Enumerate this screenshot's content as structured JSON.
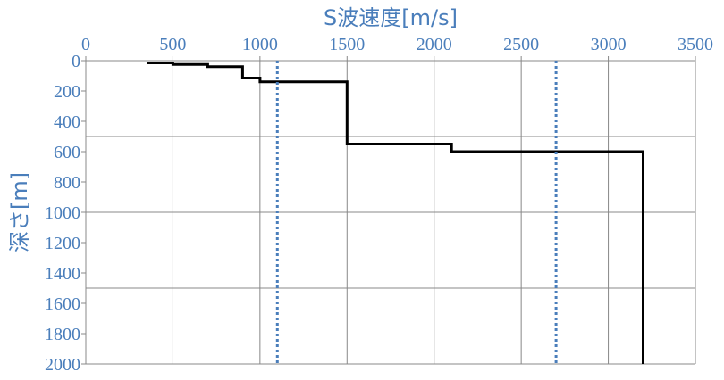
{
  "chart_data": {
    "type": "line",
    "title": "",
    "xlabel": "S波速度[m/s]",
    "ylabel": "深さ[m]",
    "x_axis_position": "top",
    "y_axis_inverted": true,
    "xlim": [
      0,
      3500
    ],
    "ylim": [
      0,
      2000
    ],
    "x_ticks": [
      "0",
      "500",
      "1000",
      "1500",
      "2000",
      "2500",
      "3000",
      "3500"
    ],
    "y_ticks": [
      "0",
      "200",
      "400",
      "600",
      "800",
      "1000",
      "1200",
      "1400",
      "1600",
      "1800",
      "2000"
    ],
    "grid": {
      "vertical_every": 500,
      "horizontal_every": 500
    },
    "label_color": "#4a7ebb",
    "series": [
      {
        "style": "solid",
        "color": "#000000",
        "points": [
          [
            350,
            15
          ],
          [
            500,
            15
          ],
          [
            500,
            25
          ],
          [
            700,
            25
          ],
          [
            700,
            40
          ],
          [
            900,
            40
          ],
          [
            900,
            115
          ],
          [
            1000,
            115
          ],
          [
            1000,
            140
          ],
          [
            1500,
            140
          ],
          [
            1500,
            550
          ],
          [
            2100,
            550
          ],
          [
            2100,
            600
          ],
          [
            3200,
            600
          ],
          [
            3200,
            2000
          ]
        ]
      },
      {
        "style": "dotted",
        "color": "#4a7ebb",
        "points": [
          [
            1100,
            0
          ],
          [
            1100,
            2000
          ]
        ]
      },
      {
        "style": "dotted",
        "color": "#4a7ebb",
        "points": [
          [
            2700,
            0
          ],
          [
            2700,
            2000
          ]
        ]
      }
    ]
  }
}
